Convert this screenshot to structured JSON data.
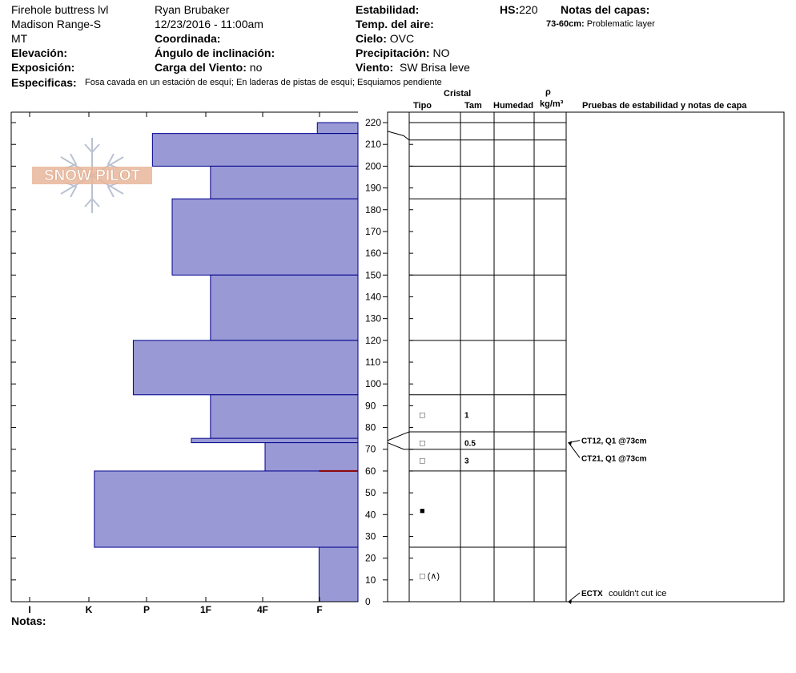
{
  "header": {
    "location": "Firehole buttress lvl",
    "range": "Madison Range-S",
    "state": "MT",
    "elevation_label": "Elevación:",
    "aspect_label": "Exposición:",
    "specifics_label": "Especificas:",
    "specifics_value": "Fosa cavada en un estación de esquí; En laderas de pistas de esquí; Esquiamos pendiente",
    "observer": "Ryan Brubaker",
    "datetime": "12/23/2016 - 11:00am",
    "coord_label": "Coordinada:",
    "slope_label": "Ángulo de inclinación:",
    "wind_load_label": "Carga del Viento:",
    "wind_load_value": "no",
    "stability_label": "Estabilidad:",
    "air_temp_label": "Temp. del aire:",
    "sky_label": "Cielo:",
    "sky_value": "OVC",
    "precip_label": "Precipitación:",
    "precip_value": "NO",
    "wind_label": "Viento:",
    "wind_value": "SW  Brisa leve",
    "hs_label": "HS:",
    "hs_value": "220",
    "layer_notes_label": "Notas del capas:",
    "layer_note_range": "73-60cm:",
    "layer_note_text": "Problematic layer",
    "notes_label": "Notas:"
  },
  "columns": {
    "crystal": "Cristal",
    "type": "Tipo",
    "size": "Tam",
    "moisture": "Humedad",
    "rho": "ρ",
    "density_unit": "kg/m³",
    "tests": "Pruebas de estabilidad y notas de capa"
  },
  "logo": {
    "text": "SNOW PILOT"
  },
  "colors": {
    "fill": "#9999d6",
    "stroke": "#00008b",
    "weak": "#8b0000"
  },
  "chart_data": {
    "type": "bar",
    "orientation": "horizontal",
    "y_range": [
      0,
      220
    ],
    "y_ticks": [
      0,
      10,
      20,
      30,
      40,
      50,
      60,
      70,
      80,
      90,
      100,
      110,
      120,
      130,
      140,
      150,
      160,
      170,
      180,
      190,
      200,
      210,
      220
    ],
    "hardness_scale": [
      "I",
      "K",
      "P",
      "1F",
      "4F",
      "F"
    ],
    "layers": [
      {
        "bottom": 215,
        "top": 220,
        "hardness": 0.7
      },
      {
        "bottom": 200,
        "top": 215,
        "hardness": 3.54
      },
      {
        "bottom": 185,
        "top": 200,
        "hardness": 2.54
      },
      {
        "bottom": 150,
        "top": 185,
        "hardness": 3.2
      },
      {
        "bottom": 120,
        "top": 150,
        "hardness": 2.54
      },
      {
        "bottom": 95,
        "top": 120,
        "hardness": 3.87
      },
      {
        "bottom": 75,
        "top": 95,
        "hardness": 2.54
      },
      {
        "bottom": 73,
        "top": 75,
        "hardness": 2.87
      },
      {
        "bottom": 60,
        "top": 73,
        "hardness": 1.6
      },
      {
        "bottom": 25,
        "top": 60,
        "hardness": 4.54
      },
      {
        "bottom": 0,
        "top": 25,
        "hardness": 0.67
      }
    ],
    "weak_layer": 60,
    "layer_lines": [
      220,
      212,
      200,
      185,
      150,
      120,
      95,
      78,
      70,
      60,
      25
    ],
    "crystals": [
      {
        "depth": 86,
        "size": "1",
        "glyph": "□"
      },
      {
        "depth": 73,
        "size": "0.5",
        "glyph": "□"
      },
      {
        "depth": 65,
        "size": "3",
        "glyph": "□"
      },
      {
        "depth": 42,
        "size": "",
        "glyph": "■"
      },
      {
        "depth": 12,
        "size": "",
        "glyph": "□ (∧)"
      }
    ],
    "tests": [
      {
        "depth": 73,
        "label": "CT12, Q1 @73cm",
        "text_depth": 73
      },
      {
        "depth": 73,
        "label": "CT21, Q1 @73cm",
        "text_depth": 65
      },
      {
        "depth": 0,
        "label": "ECTX",
        "note": "couldn't cut ice",
        "text_depth": 3
      }
    ]
  }
}
